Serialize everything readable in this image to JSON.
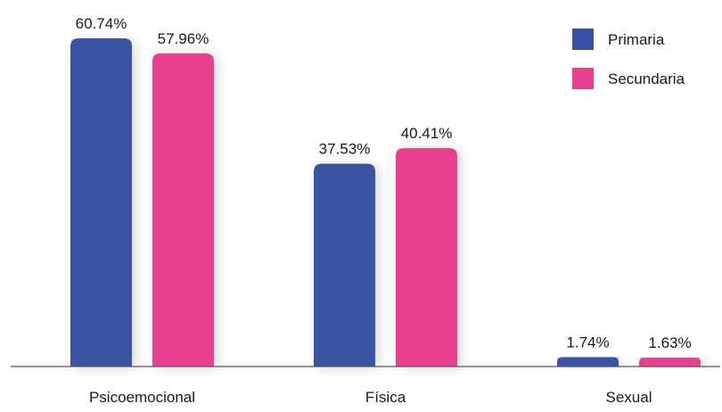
{
  "chart_data": {
    "type": "bar",
    "title": "",
    "xlabel": "",
    "ylabel": "",
    "categories": [
      "Psicoemocional",
      "Física",
      "Sexual"
    ],
    "series": [
      {
        "name": "Primaria",
        "color": "#3a52a3",
        "values": [
          60.74,
          37.53,
          1.74
        ],
        "labels": [
          "60.74%",
          "37.53%",
          "1.74%"
        ]
      },
      {
        "name": "Secundaria",
        "color": "#e8408f",
        "values": [
          57.96,
          40.41,
          1.63
        ],
        "labels": [
          "57.96%",
          "40.41%",
          "1.63%"
        ]
      }
    ],
    "ylim": [
      0,
      60.74
    ],
    "grid": false,
    "legend_position": "top-right"
  }
}
